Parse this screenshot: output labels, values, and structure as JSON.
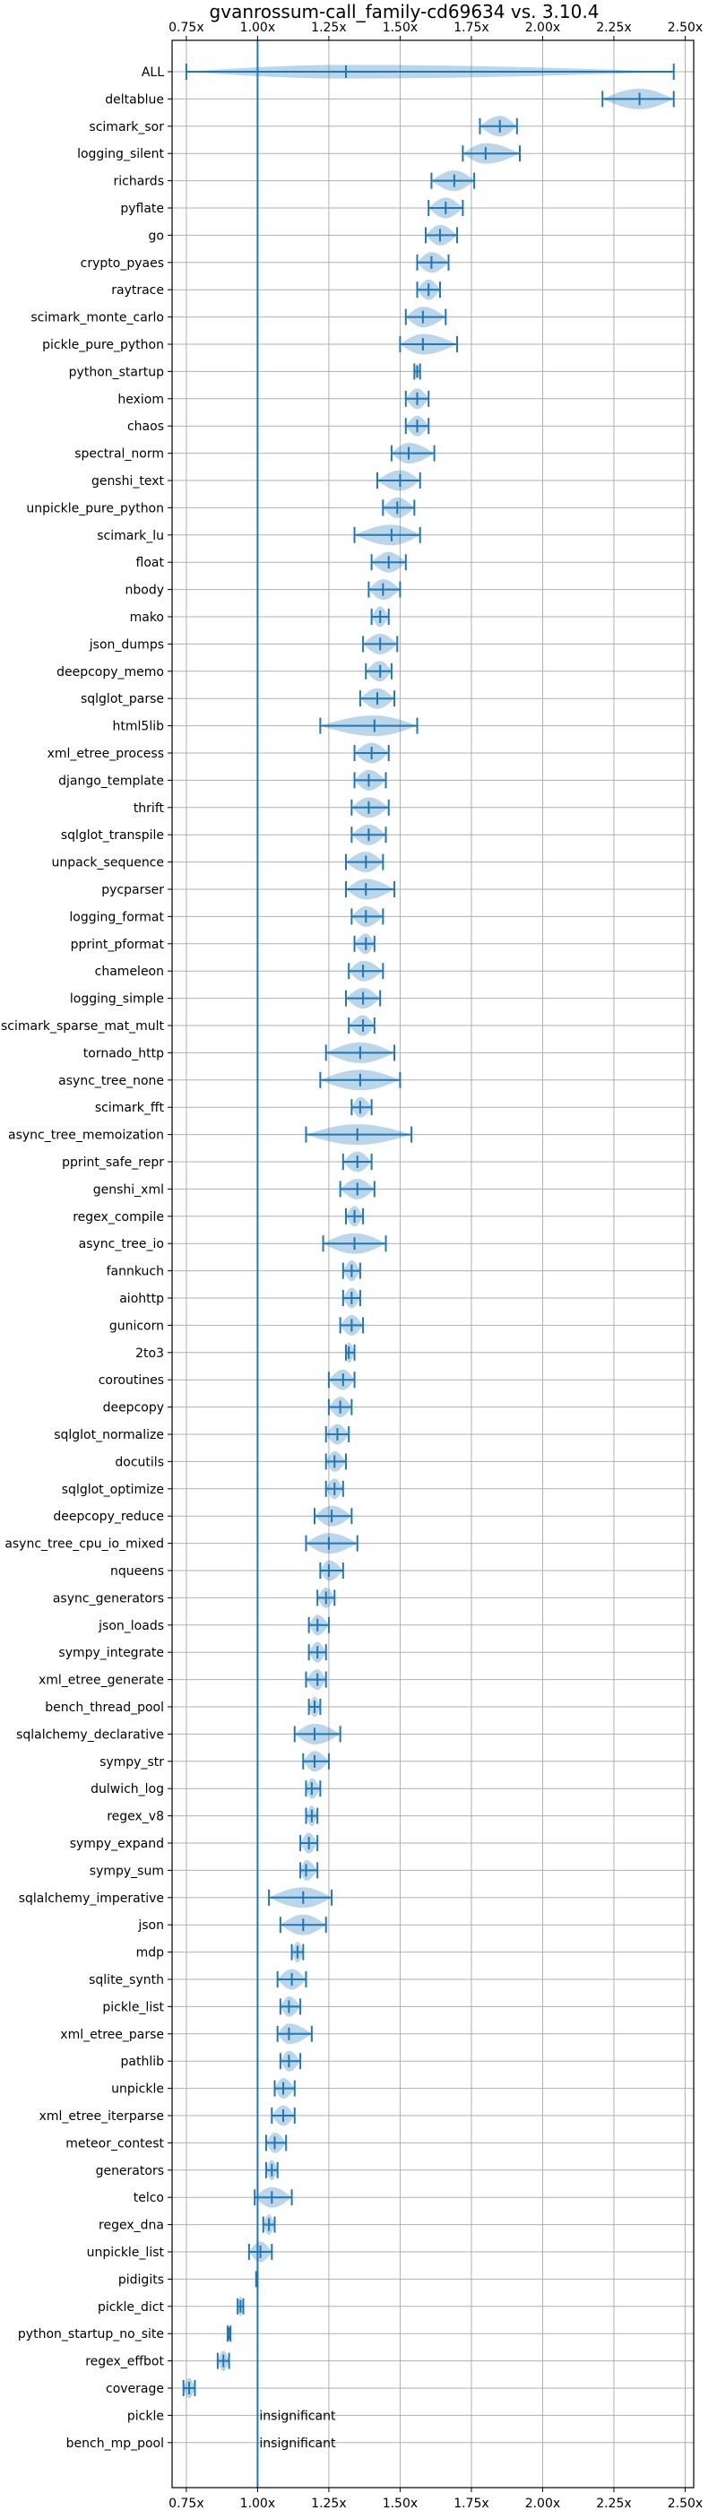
{
  "chart_data": {
    "type": "violin",
    "title": "gvanrossum-call_family-cd69634 vs. 3.10.4",
    "xlabel": "",
    "ylabel": "",
    "xlim": [
      0.7,
      2.53
    ],
    "reference_x": 1.0,
    "grid": true,
    "x_ticks": [
      0.75,
      1.0,
      1.25,
      1.5,
      1.75,
      2.0,
      2.25,
      2.5
    ],
    "x_tick_labels": [
      "0.75x",
      "1.00x",
      "1.25x",
      "1.50x",
      "1.75x",
      "2.00x",
      "2.25x",
      "2.50x"
    ],
    "series": [
      {
        "name": "ALL",
        "min": 0.75,
        "max": 2.46,
        "median": 1.31,
        "width": 0.6
      },
      {
        "name": "deltablue",
        "min": 2.21,
        "max": 2.46,
        "median": 2.34,
        "width": 0.9
      },
      {
        "name": "scimark_sor",
        "min": 1.78,
        "max": 1.91,
        "median": 1.85,
        "width": 0.9
      },
      {
        "name": "logging_silent",
        "min": 1.72,
        "max": 1.92,
        "median": 1.8,
        "width": 0.9
      },
      {
        "name": "richards",
        "min": 1.61,
        "max": 1.76,
        "median": 1.69,
        "width": 0.9
      },
      {
        "name": "pyflate",
        "min": 1.6,
        "max": 1.72,
        "median": 1.66,
        "width": 0.9
      },
      {
        "name": "go",
        "min": 1.59,
        "max": 1.7,
        "median": 1.64,
        "width": 0.9
      },
      {
        "name": "crypto_pyaes",
        "min": 1.56,
        "max": 1.67,
        "median": 1.61,
        "width": 0.9
      },
      {
        "name": "raytrace",
        "min": 1.56,
        "max": 1.64,
        "median": 1.6,
        "width": 0.9
      },
      {
        "name": "scimark_monte_carlo",
        "min": 1.52,
        "max": 1.66,
        "median": 1.58,
        "width": 0.9
      },
      {
        "name": "pickle_pure_python",
        "min": 1.5,
        "max": 1.7,
        "median": 1.58,
        "width": 0.9
      },
      {
        "name": "python_startup",
        "min": 1.55,
        "max": 1.57,
        "median": 1.56,
        "width": 0.6
      },
      {
        "name": "hexiom",
        "min": 1.52,
        "max": 1.6,
        "median": 1.56,
        "width": 0.9
      },
      {
        "name": "chaos",
        "min": 1.52,
        "max": 1.6,
        "median": 1.56,
        "width": 0.9
      },
      {
        "name": "spectral_norm",
        "min": 1.47,
        "max": 1.62,
        "median": 1.53,
        "width": 0.9
      },
      {
        "name": "genshi_text",
        "min": 1.42,
        "max": 1.57,
        "median": 1.5,
        "width": 0.9
      },
      {
        "name": "unpickle_pure_python",
        "min": 1.44,
        "max": 1.55,
        "median": 1.49,
        "width": 0.9
      },
      {
        "name": "scimark_lu",
        "min": 1.34,
        "max": 1.57,
        "median": 1.47,
        "width": 0.9
      },
      {
        "name": "float",
        "min": 1.4,
        "max": 1.52,
        "median": 1.46,
        "width": 0.9
      },
      {
        "name": "nbody",
        "min": 1.39,
        "max": 1.5,
        "median": 1.44,
        "width": 0.9
      },
      {
        "name": "mako",
        "min": 1.4,
        "max": 1.46,
        "median": 1.43,
        "width": 0.9
      },
      {
        "name": "json_dumps",
        "min": 1.37,
        "max": 1.49,
        "median": 1.43,
        "width": 0.9
      },
      {
        "name": "deepcopy_memo",
        "min": 1.38,
        "max": 1.47,
        "median": 1.43,
        "width": 0.9
      },
      {
        "name": "sqlglot_parse",
        "min": 1.36,
        "max": 1.48,
        "median": 1.42,
        "width": 0.9
      },
      {
        "name": "html5lib",
        "min": 1.22,
        "max": 1.56,
        "median": 1.41,
        "width": 0.9
      },
      {
        "name": "xml_etree_process",
        "min": 1.34,
        "max": 1.46,
        "median": 1.4,
        "width": 0.9
      },
      {
        "name": "django_template",
        "min": 1.34,
        "max": 1.45,
        "median": 1.39,
        "width": 0.9
      },
      {
        "name": "thrift",
        "min": 1.33,
        "max": 1.46,
        "median": 1.39,
        "width": 0.9
      },
      {
        "name": "sqlglot_transpile",
        "min": 1.33,
        "max": 1.45,
        "median": 1.39,
        "width": 0.9
      },
      {
        "name": "unpack_sequence",
        "min": 1.31,
        "max": 1.44,
        "median": 1.38,
        "width": 0.9
      },
      {
        "name": "pycparser",
        "min": 1.31,
        "max": 1.48,
        "median": 1.38,
        "width": 0.9
      },
      {
        "name": "logging_format",
        "min": 1.33,
        "max": 1.44,
        "median": 1.38,
        "width": 0.9
      },
      {
        "name": "pprint_pformat",
        "min": 1.34,
        "max": 1.41,
        "median": 1.38,
        "width": 0.9
      },
      {
        "name": "chameleon",
        "min": 1.32,
        "max": 1.44,
        "median": 1.37,
        "width": 0.9
      },
      {
        "name": "logging_simple",
        "min": 1.31,
        "max": 1.43,
        "median": 1.37,
        "width": 0.9
      },
      {
        "name": "scimark_sparse_mat_mult",
        "min": 1.32,
        "max": 1.41,
        "median": 1.37,
        "width": 0.9
      },
      {
        "name": "tornado_http",
        "min": 1.24,
        "max": 1.48,
        "median": 1.36,
        "width": 0.9
      },
      {
        "name": "async_tree_none",
        "min": 1.22,
        "max": 1.5,
        "median": 1.36,
        "width": 0.9
      },
      {
        "name": "scimark_fft",
        "min": 1.33,
        "max": 1.4,
        "median": 1.36,
        "width": 0.9
      },
      {
        "name": "async_tree_memoization",
        "min": 1.17,
        "max": 1.54,
        "median": 1.35,
        "width": 0.9
      },
      {
        "name": "pprint_safe_repr",
        "min": 1.3,
        "max": 1.4,
        "median": 1.35,
        "width": 0.9
      },
      {
        "name": "genshi_xml",
        "min": 1.29,
        "max": 1.41,
        "median": 1.35,
        "width": 0.9
      },
      {
        "name": "regex_compile",
        "min": 1.31,
        "max": 1.37,
        "median": 1.34,
        "width": 0.9
      },
      {
        "name": "async_tree_io",
        "min": 1.23,
        "max": 1.45,
        "median": 1.34,
        "width": 0.9
      },
      {
        "name": "fannkuch",
        "min": 1.3,
        "max": 1.36,
        "median": 1.33,
        "width": 0.9
      },
      {
        "name": "aiohttp",
        "min": 1.3,
        "max": 1.36,
        "median": 1.33,
        "width": 0.9
      },
      {
        "name": "gunicorn",
        "min": 1.29,
        "max": 1.37,
        "median": 1.33,
        "width": 0.9
      },
      {
        "name": "2to3",
        "min": 1.31,
        "max": 1.34,
        "median": 1.32,
        "width": 0.9
      },
      {
        "name": "coroutines",
        "min": 1.25,
        "max": 1.34,
        "median": 1.3,
        "width": 0.9
      },
      {
        "name": "deepcopy",
        "min": 1.25,
        "max": 1.33,
        "median": 1.29,
        "width": 0.9
      },
      {
        "name": "sqlglot_normalize",
        "min": 1.24,
        "max": 1.32,
        "median": 1.28,
        "width": 0.9
      },
      {
        "name": "docutils",
        "min": 1.24,
        "max": 1.31,
        "median": 1.27,
        "width": 0.9
      },
      {
        "name": "sqlglot_optimize",
        "min": 1.24,
        "max": 1.3,
        "median": 1.27,
        "width": 0.9
      },
      {
        "name": "deepcopy_reduce",
        "min": 1.2,
        "max": 1.33,
        "median": 1.26,
        "width": 0.9
      },
      {
        "name": "async_tree_cpu_io_mixed",
        "min": 1.17,
        "max": 1.35,
        "median": 1.25,
        "width": 0.9
      },
      {
        "name": "nqueens",
        "min": 1.22,
        "max": 1.3,
        "median": 1.25,
        "width": 0.9
      },
      {
        "name": "async_generators",
        "min": 1.21,
        "max": 1.27,
        "median": 1.24,
        "width": 0.9
      },
      {
        "name": "json_loads",
        "min": 1.18,
        "max": 1.25,
        "median": 1.21,
        "width": 0.9
      },
      {
        "name": "sympy_integrate",
        "min": 1.18,
        "max": 1.24,
        "median": 1.21,
        "width": 0.9
      },
      {
        "name": "xml_etree_generate",
        "min": 1.17,
        "max": 1.24,
        "median": 1.21,
        "width": 0.9
      },
      {
        "name": "bench_thread_pool",
        "min": 1.18,
        "max": 1.22,
        "median": 1.2,
        "width": 0.9
      },
      {
        "name": "sqlalchemy_declarative",
        "min": 1.13,
        "max": 1.29,
        "median": 1.2,
        "width": 0.9
      },
      {
        "name": "sympy_str",
        "min": 1.16,
        "max": 1.25,
        "median": 1.2,
        "width": 0.9
      },
      {
        "name": "dulwich_log",
        "min": 1.17,
        "max": 1.22,
        "median": 1.19,
        "width": 0.9
      },
      {
        "name": "regex_v8",
        "min": 1.17,
        "max": 1.21,
        "median": 1.19,
        "width": 0.9
      },
      {
        "name": "sympy_expand",
        "min": 1.15,
        "max": 1.21,
        "median": 1.18,
        "width": 0.9
      },
      {
        "name": "sympy_sum",
        "min": 1.15,
        "max": 1.21,
        "median": 1.17,
        "width": 0.9
      },
      {
        "name": "sqlalchemy_imperative",
        "min": 1.04,
        "max": 1.26,
        "median": 1.16,
        "width": 0.9
      },
      {
        "name": "json",
        "min": 1.08,
        "max": 1.24,
        "median": 1.16,
        "width": 0.9
      },
      {
        "name": "mdp",
        "min": 1.12,
        "max": 1.16,
        "median": 1.14,
        "width": 0.9
      },
      {
        "name": "sqlite_synth",
        "min": 1.07,
        "max": 1.17,
        "median": 1.12,
        "width": 0.9
      },
      {
        "name": "pickle_list",
        "min": 1.08,
        "max": 1.15,
        "median": 1.11,
        "width": 0.9
      },
      {
        "name": "xml_etree_parse",
        "min": 1.07,
        "max": 1.19,
        "median": 1.11,
        "width": 0.9
      },
      {
        "name": "pathlib",
        "min": 1.08,
        "max": 1.15,
        "median": 1.11,
        "width": 0.9
      },
      {
        "name": "unpickle",
        "min": 1.06,
        "max": 1.13,
        "median": 1.09,
        "width": 0.9
      },
      {
        "name": "xml_etree_iterparse",
        "min": 1.05,
        "max": 1.13,
        "median": 1.09,
        "width": 0.9
      },
      {
        "name": "meteor_contest",
        "min": 1.03,
        "max": 1.1,
        "median": 1.06,
        "width": 0.9
      },
      {
        "name": "generators",
        "min": 1.03,
        "max": 1.07,
        "median": 1.05,
        "width": 0.9
      },
      {
        "name": "telco",
        "min": 0.99,
        "max": 1.12,
        "median": 1.05,
        "width": 0.9
      },
      {
        "name": "regex_dna",
        "min": 1.02,
        "max": 1.06,
        "median": 1.04,
        "width": 0.9
      },
      {
        "name": "unpickle_list",
        "min": 0.97,
        "max": 1.05,
        "median": 1.01,
        "width": 0.9
      },
      {
        "name": "pidigits",
        "min": 0.995,
        "max": 1.0,
        "median": 0.998,
        "width": 0.3
      },
      {
        "name": "pickle_dict",
        "min": 0.93,
        "max": 0.95,
        "median": 0.94,
        "width": 0.9
      },
      {
        "name": "python_startup_no_site",
        "min": 0.895,
        "max": 0.905,
        "median": 0.9,
        "width": 0.3
      },
      {
        "name": "regex_effbot",
        "min": 0.86,
        "max": 0.9,
        "median": 0.88,
        "width": 0.9
      },
      {
        "name": "coverage",
        "min": 0.74,
        "max": 0.78,
        "median": 0.76,
        "width": 0.9
      },
      {
        "name": "pickle",
        "annotation": "insignificant"
      },
      {
        "name": "bench_mp_pool",
        "annotation": "insignificant"
      }
    ]
  }
}
